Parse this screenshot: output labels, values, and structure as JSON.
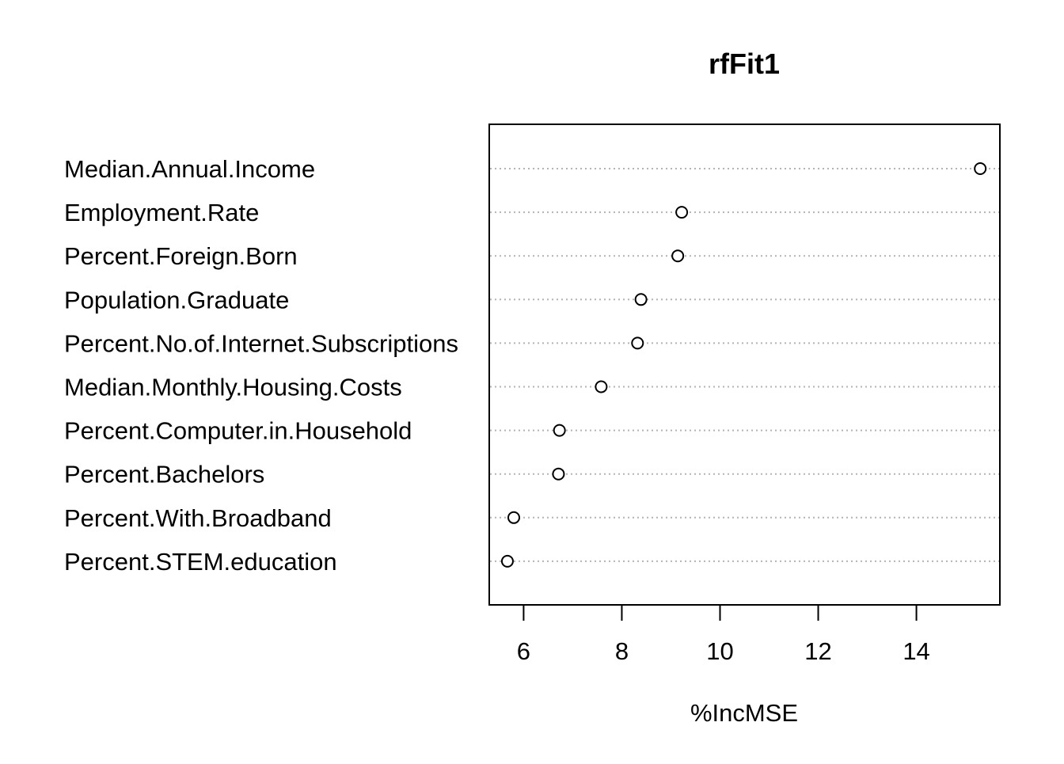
{
  "chart_data": {
    "type": "scatter",
    "variant": "dotchart",
    "title": "rfFit1",
    "xlabel": "%IncMSE",
    "ylabel": "",
    "xlim": [
      5.3,
      15.7
    ],
    "xticks": [
      6,
      8,
      10,
      12,
      14
    ],
    "grid": "dotted horizontal lines per category",
    "categories": [
      "Median.Annual.Income",
      "Employment.Rate",
      "Percent.Foreign.Born",
      "Population.Graduate",
      "Percent.No.of.Internet.Subscriptions",
      "Median.Monthly.Housing.Costs",
      "Percent.Computer.in.Household",
      "Percent.Bachelors",
      "Percent.With.Broadband",
      "Percent.STEM.education"
    ],
    "values": [
      15.3,
      9.22,
      9.14,
      8.39,
      8.32,
      7.58,
      6.73,
      6.71,
      5.8,
      5.67
    ]
  }
}
